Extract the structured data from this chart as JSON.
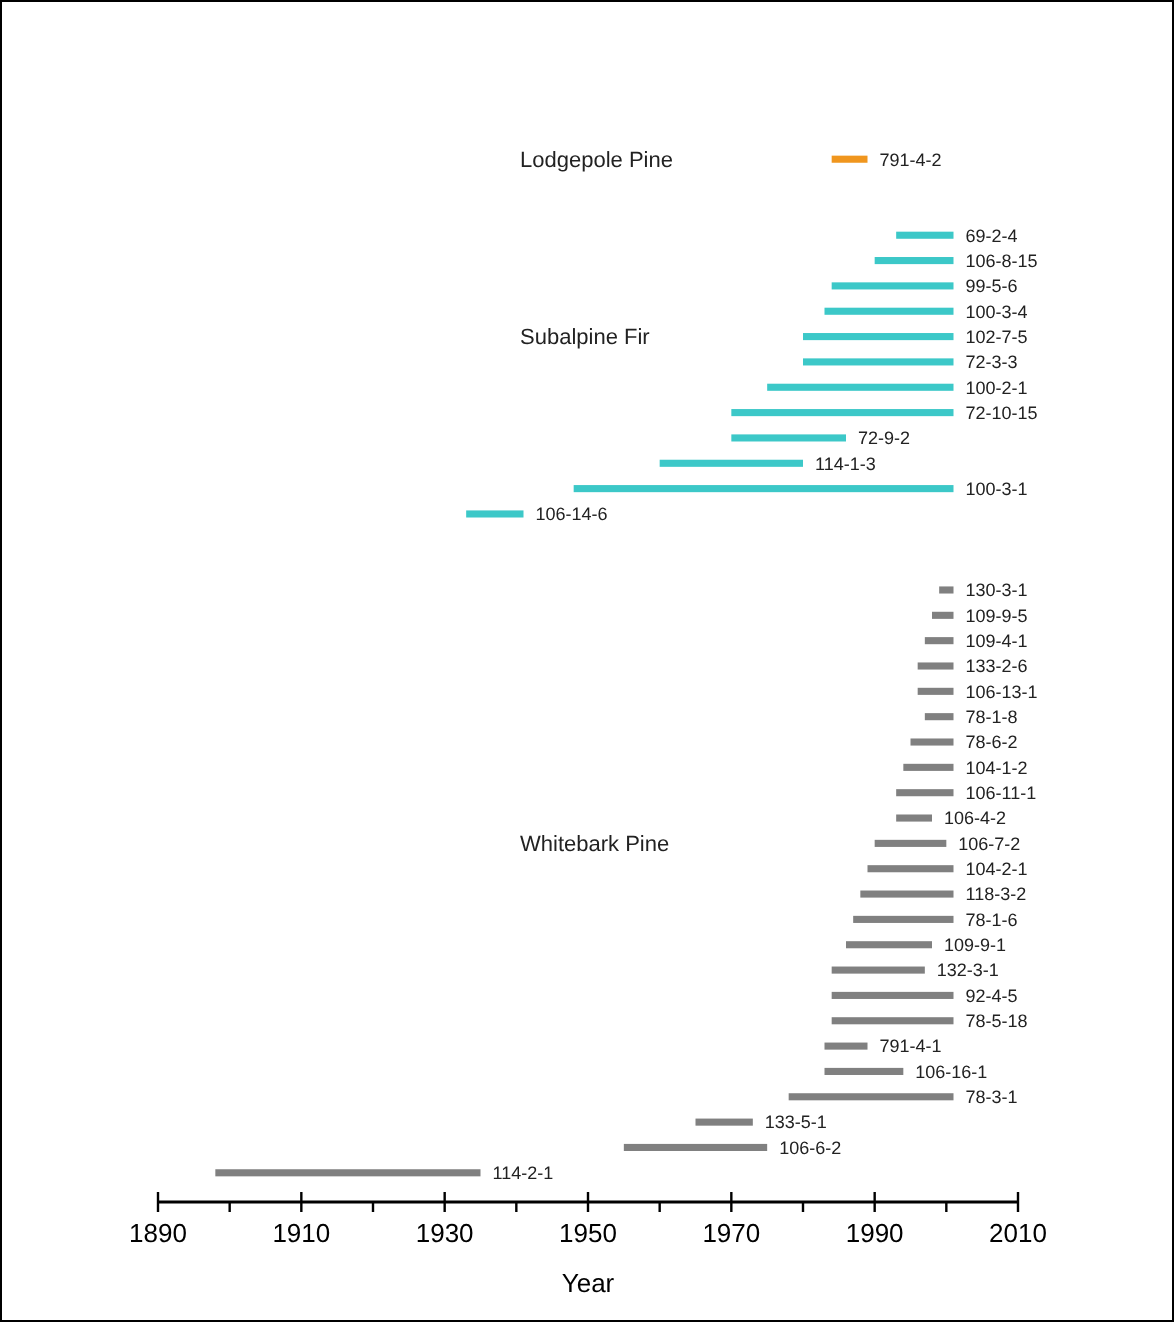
{
  "chart_data": {
    "type": "bar",
    "orientation": "horizontal",
    "xlabel": "Year",
    "annotations": [
      "Lodgepole Pine",
      "Subalpine Fir",
      "Whitebark Pine"
    ],
    "categories": [
      "791-4-2",
      null,
      null,
      "69-2-4",
      "106-8-15",
      "99-5-6",
      "100-3-4",
      "102-7-5",
      "72-3-3",
      "100-2-1",
      "72-10-15",
      "72-9-2",
      "114-1-3",
      "100-3-1",
      "106-14-6",
      null,
      null,
      "130-3-1",
      "109-9-5",
      "109-4-1",
      "133-2-6",
      "106-13-1",
      "78-1-8",
      "78-6-2",
      "104-1-2",
      "106-11-1",
      "106-4-2",
      "106-7-2",
      "104-2-1",
      "118-3-2",
      "78-1-6",
      "109-9-1",
      "132-3-1",
      "92-4-5",
      "78-5-18",
      "791-4-1",
      "106-16-1",
      "78-3-1",
      "133-5-1",
      "106-6-2",
      "114-2-1"
    ],
    "series": [
      {
        "color": "#f0961e",
        "base": [
          1984,
          null,
          null,
          null,
          null,
          null,
          null,
          null,
          null,
          null,
          null,
          null,
          null,
          null,
          null,
          null,
          null,
          null,
          null,
          null,
          null,
          null,
          null,
          null,
          null,
          null,
          null,
          null,
          null,
          null,
          null,
          null,
          null,
          null,
          null,
          null,
          null,
          null,
          null,
          null,
          null
        ],
        "values": [
          5,
          null,
          null,
          null,
          null,
          null,
          null,
          null,
          null,
          null,
          null,
          null,
          null,
          null,
          null,
          null,
          null,
          null,
          null,
          null,
          null,
          null,
          null,
          null,
          null,
          null,
          null,
          null,
          null,
          null,
          null,
          null,
          null,
          null,
          null,
          null,
          null,
          null,
          null,
          null,
          null
        ]
      },
      {
        "color": "#3cc8c8",
        "base": [
          null,
          null,
          null,
          1993,
          1990,
          1984,
          1983,
          1980,
          1980,
          1975,
          1970,
          1970,
          1960,
          1948,
          1933,
          null,
          null,
          null,
          null,
          null,
          null,
          null,
          null,
          null,
          null,
          null,
          null,
          null,
          null,
          null,
          null,
          null,
          null,
          null,
          null,
          null,
          null,
          null,
          null,
          null,
          null
        ],
        "values": [
          null,
          null,
          null,
          8,
          11,
          17,
          18,
          21,
          21,
          26,
          31,
          16,
          20,
          53,
          8,
          null,
          null,
          null,
          null,
          null,
          null,
          null,
          null,
          null,
          null,
          null,
          null,
          null,
          null,
          null,
          null,
          null,
          null,
          null,
          null,
          null,
          null,
          null,
          null,
          null,
          null
        ]
      },
      {
        "color": "#808080",
        "base": [
          null,
          null,
          null,
          null,
          null,
          null,
          null,
          null,
          null,
          null,
          null,
          null,
          null,
          null,
          null,
          null,
          null,
          1999,
          1998,
          1997,
          1996,
          1996,
          1997,
          1995,
          1994,
          1993,
          1993,
          1990,
          1989,
          1988,
          1987,
          1986,
          1984,
          1984,
          1984,
          1983,
          1983,
          1978,
          1965,
          1955,
          1898
        ],
        "values": [
          null,
          null,
          null,
          null,
          null,
          null,
          null,
          null,
          null,
          null,
          null,
          null,
          null,
          null,
          null,
          null,
          null,
          2,
          3,
          4,
          5,
          5,
          4,
          6,
          7,
          8,
          5,
          10,
          12,
          13,
          14,
          12,
          13,
          17,
          17,
          6,
          11,
          23,
          8,
          20,
          37
        ]
      }
    ],
    "xlim": [
      1890,
      2010
    ],
    "xticks": [
      1890,
      {
        "value": 1900,
        "label": null
      },
      1910,
      {
        "value": 1920,
        "label": null
      },
      1930,
      {
        "value": 1940,
        "label": null
      },
      1950,
      {
        "value": 1960,
        "label": null
      },
      1970,
      {
        "value": 1980,
        "label": null
      },
      1990,
      {
        "value": 2000,
        "label": null
      },
      2010
    ],
    "grid": false
  }
}
